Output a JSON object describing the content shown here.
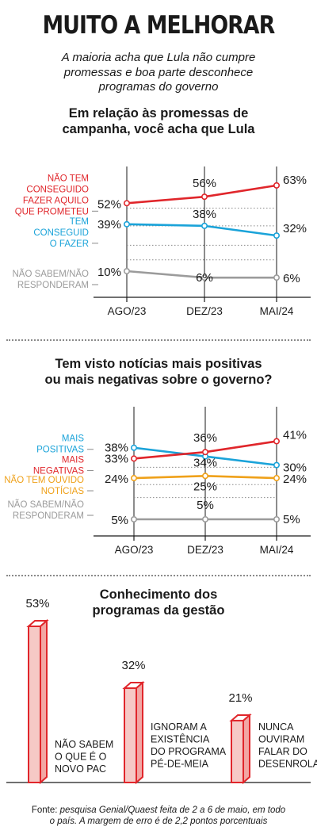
{
  "header": {
    "title": "MUITO A MELHORAR",
    "subtitle_lines": [
      "A maioria acha que Lula não cumpre",
      "promessas e boa parte desconhece",
      "programas do governo"
    ]
  },
  "colors": {
    "red": "#e0262b",
    "blue": "#1aa3d9",
    "gray": "#9b9b9b",
    "orange": "#efa11a",
    "text": "#1a1a1a"
  },
  "source": {
    "prefix": "Fonte: ",
    "line1": "pesquisa Genial/Quaest feita de 2 a 6 de maio, em todo",
    "line2": "o país. A margem de erro é de 2,2 pontos porcentuais"
  },
  "chart_data": [
    {
      "type": "line",
      "title_lines": [
        "Em relação às promessas de",
        "campanha, você acha que Lula"
      ],
      "categories": [
        "AGO/23",
        "DEZ/23",
        "MAI/24"
      ],
      "series": [
        {
          "name_lines": [
            "NÃO TEM",
            "CONSEGUIDO",
            "FAZER AQUILO",
            "QUE PROMETEU"
          ],
          "color": "red",
          "values": [
            52,
            56,
            63
          ],
          "labels": [
            "52%",
            "56%",
            "63%"
          ]
        },
        {
          "name_lines": [
            "TEM",
            "CONSEGUID",
            "O FAZER"
          ],
          "color": "blue",
          "values": [
            39,
            38,
            32
          ],
          "labels": [
            "39%",
            "38%",
            "32%"
          ]
        },
        {
          "name_lines": [
            "NÃO SABEM/NÃO",
            "RESPONDERAM"
          ],
          "color": "gray",
          "values": [
            10,
            6,
            6
          ],
          "labels": [
            "10%",
            "6%",
            "6%"
          ]
        }
      ]
    },
    {
      "type": "line",
      "title_lines": [
        "Tem visto notícias mais positivas",
        "ou mais negativas sobre o governo?"
      ],
      "categories": [
        "AGO/23",
        "DEZ/23",
        "MAI/24"
      ],
      "series": [
        {
          "name_lines": [
            "MAIS",
            "POSITIVAS"
          ],
          "color": "blue",
          "values": [
            38,
            34,
            30
          ],
          "labels": [
            "38%",
            "34%",
            "30%"
          ]
        },
        {
          "name_lines": [
            "MAIS",
            "NEGATIVAS"
          ],
          "color": "red",
          "values": [
            33,
            36,
            41
          ],
          "labels": [
            "33%",
            "36%",
            "41%"
          ]
        },
        {
          "name_lines": [
            "NÃO TEM OUVIDO",
            "NOTÍCIAS"
          ],
          "color": "orange",
          "values": [
            24,
            25,
            24
          ],
          "labels": [
            "24%",
            "25%",
            "24%"
          ]
        },
        {
          "name_lines": [
            "NÃO SABEM/NÃO",
            "RESPONDERAM"
          ],
          "color": "gray",
          "values": [
            5,
            5,
            5
          ],
          "labels": [
            "5%",
            "5%",
            "5%"
          ]
        }
      ]
    },
    {
      "type": "bar",
      "title_lines": [
        "Conhecimento dos",
        "programas da gestão"
      ],
      "ylim": [
        0,
        53
      ],
      "bars": [
        {
          "value": 53,
          "label": "53%",
          "caption_lines": [
            "NÃO SABEM",
            "O QUE É O",
            "NOVO PAC"
          ]
        },
        {
          "value": 32,
          "label": "32%",
          "caption_lines": [
            "IGNORAM A",
            "EXISTÊNCIA",
            "DO PROGRAMA",
            "PÉ-DE-MEIA"
          ]
        },
        {
          "value": 21,
          "label": "21%",
          "caption_lines": [
            "NUNCA",
            "OUVIRAM",
            "FALAR DO",
            "DESENROLA"
          ]
        }
      ]
    }
  ]
}
